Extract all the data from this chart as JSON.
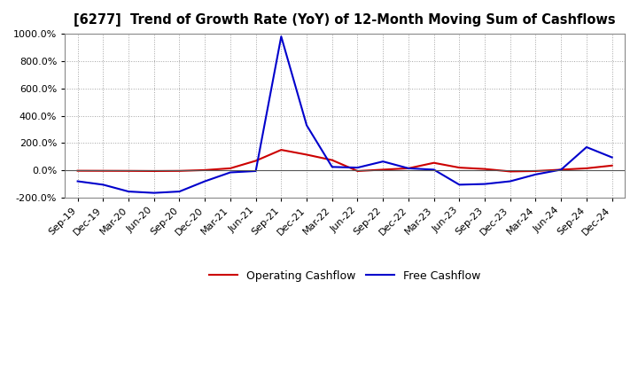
{
  "title": "[6277]  Trend of Growth Rate (YoY) of 12-Month Moving Sum of Cashflows",
  "x_labels": [
    "Sep-19",
    "Dec-19",
    "Mar-20",
    "Jun-20",
    "Sep-20",
    "Dec-20",
    "Mar-21",
    "Jun-21",
    "Sep-21",
    "Dec-21",
    "Mar-22",
    "Jun-22",
    "Sep-22",
    "Dec-22",
    "Mar-23",
    "Jun-23",
    "Sep-23",
    "Dec-23",
    "Mar-24",
    "Jun-24",
    "Sep-24",
    "Dec-24"
  ],
  "op_cf": [
    -3.0,
    -3.5,
    -4.0,
    -5.0,
    -4.0,
    2.0,
    15.0,
    70.0,
    150.0,
    115.0,
    75.0,
    -5.0,
    5.0,
    15.0,
    55.0,
    20.0,
    10.0,
    -8.0,
    -5.0,
    5.0,
    15.0,
    35.0
  ],
  "free_cf": [
    -80.0,
    -105.0,
    -155.0,
    -165.0,
    -155.0,
    -80.0,
    -15.0,
    -5.0,
    980.0,
    330.0,
    25.0,
    20.0,
    65.0,
    15.0,
    5.0,
    -105.0,
    -100.0,
    -80.0,
    -30.0,
    5.0,
    170.0,
    95.0
  ],
  "ylim": [
    -200,
    1000
  ],
  "yticks": [
    -200,
    0,
    200,
    400,
    600,
    800,
    1000
  ],
  "operating_color": "#cc0000",
  "free_color": "#0000cc",
  "background_color": "#ffffff",
  "grid_color": "#999999",
  "legend_labels": [
    "Operating Cashflow",
    "Free Cashflow"
  ]
}
